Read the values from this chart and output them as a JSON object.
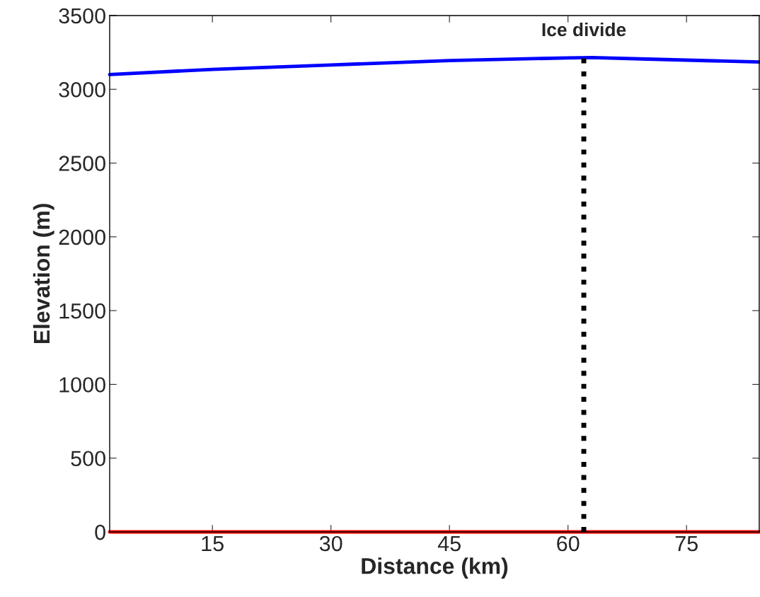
{
  "chart_data": {
    "type": "line",
    "xlabel": "Distance (km)",
    "ylabel": "Elevation (m)",
    "xlim": [
      2,
      84.2
    ],
    "xticks": [
      15,
      30,
      45,
      60,
      75
    ],
    "ylim": [
      0,
      3500
    ],
    "yticks": [
      0,
      500,
      1000,
      1500,
      2000,
      2500,
      3000,
      3500
    ],
    "series": [
      {
        "color": "#0000ff",
        "x": [
          2,
          15,
          30,
          45,
          60,
          63,
          70,
          84.2
        ],
        "values": [
          3100,
          3135,
          3165,
          3195,
          3213,
          3215,
          3205,
          3185
        ]
      },
      {
        "color": "#ff0000",
        "x": [
          2,
          84.2
        ],
        "values": [
          0,
          0
        ]
      }
    ],
    "ref_lines": [
      {
        "axis": "x",
        "value": 62,
        "label": "Ice divide",
        "color": "#000000",
        "line_style": "dotted"
      }
    ],
    "grid": false,
    "legend": false
  }
}
